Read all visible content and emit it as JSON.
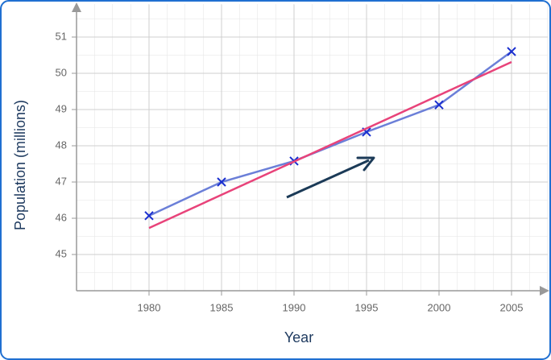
{
  "chart_data": {
    "type": "line",
    "x_label": "Year",
    "y_label": "Population (millions)",
    "xlim": [
      1975,
      2007.5
    ],
    "ylim": [
      44,
      51.9
    ],
    "xticks": [
      1980,
      1985,
      1990,
      1995,
      2000,
      2005
    ],
    "yticks": [
      45,
      46,
      47,
      48,
      49,
      50,
      51
    ],
    "grid": true,
    "series": [
      {
        "color": "#6b7fd8",
        "marker_color": "#1a2fcf",
        "marker": "x",
        "x": [
          1980,
          1985,
          1990,
          1995,
          2000,
          2005
        ],
        "values": [
          46.07,
          47.0,
          47.58,
          48.38,
          49.13,
          50.6
        ]
      },
      {
        "color": "#e8437a",
        "x": [
          1980,
          2005
        ],
        "values": [
          45.73,
          50.31
        ]
      }
    ]
  }
}
